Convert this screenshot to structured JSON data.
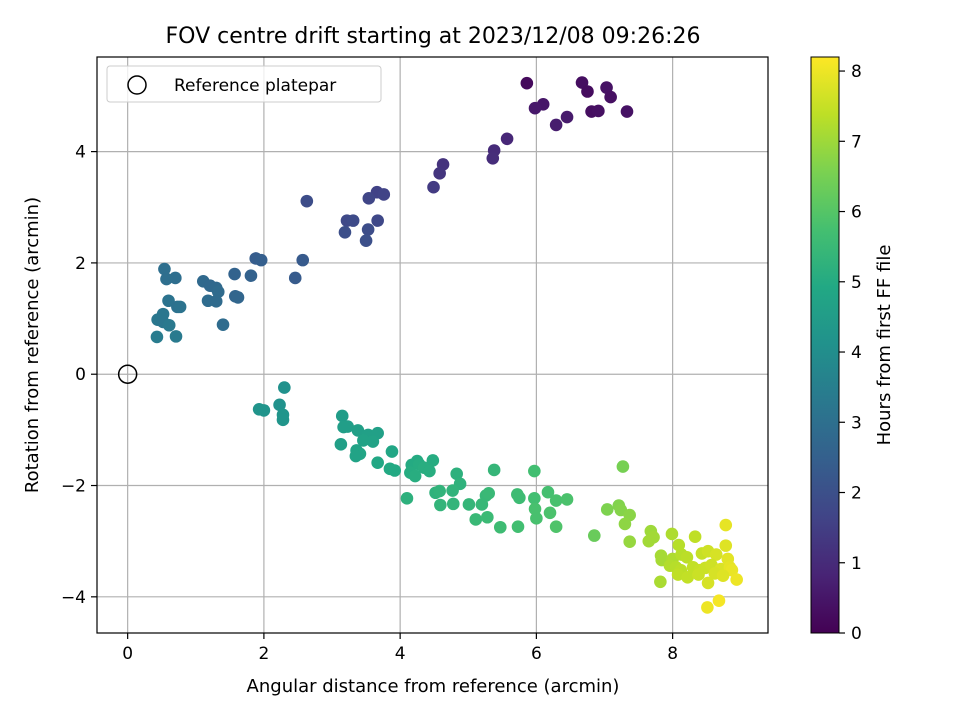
{
  "chart_data": {
    "type": "scatter",
    "title": "FOV centre drift starting at 2023/12/08 09:26:26",
    "xlabel": "Angular distance from reference (arcmin)",
    "ylabel": "Rotation from reference (arcmin)",
    "xlim": [
      -0.45,
      9.4
    ],
    "ylim": [
      -4.65,
      5.7
    ],
    "xticks": [
      0,
      2,
      4,
      6,
      8
    ],
    "yticks": [
      -4,
      -2,
      0,
      2,
      4
    ],
    "xtick_labels": [
      "0",
      "2",
      "4",
      "6",
      "8"
    ],
    "ytick_labels": [
      "−4",
      "−2",
      "0",
      "2",
      "4"
    ],
    "grid": true,
    "legend": {
      "position": "top-left",
      "entries": [
        {
          "label": "Reference platepar",
          "marker": "open-circle"
        }
      ]
    },
    "reference_point": {
      "x": 0,
      "y": 0
    },
    "colorbar": {
      "label": "Hours from first FF file",
      "range": [
        0,
        8.2
      ],
      "ticks": [
        0,
        1,
        2,
        3,
        4,
        5,
        6,
        7,
        8
      ],
      "tick_labels": [
        "0",
        "1",
        "2",
        "3",
        "4",
        "5",
        "6",
        "7",
        "8"
      ],
      "colormap": "viridis"
    },
    "points": [
      {
        "x": 5.86,
        "y": 5.23,
        "c": 0.2
      },
      {
        "x": 6.67,
        "y": 5.24,
        "c": 0.3
      },
      {
        "x": 7.03,
        "y": 5.15,
        "c": 0.4
      },
      {
        "x": 6.75,
        "y": 5.08,
        "c": 0.25
      },
      {
        "x": 7.09,
        "y": 4.98,
        "c": 0.35
      },
      {
        "x": 6.1,
        "y": 4.85,
        "c": 0.5
      },
      {
        "x": 5.98,
        "y": 4.78,
        "c": 0.55
      },
      {
        "x": 6.81,
        "y": 4.72,
        "c": 0.3
      },
      {
        "x": 6.91,
        "y": 4.73,
        "c": 0.35
      },
      {
        "x": 7.33,
        "y": 4.72,
        "c": 0.4
      },
      {
        "x": 6.45,
        "y": 4.62,
        "c": 0.6
      },
      {
        "x": 6.29,
        "y": 4.48,
        "c": 0.65
      },
      {
        "x": 5.57,
        "y": 4.23,
        "c": 0.9
      },
      {
        "x": 5.38,
        "y": 4.02,
        "c": 1.0
      },
      {
        "x": 5.36,
        "y": 3.88,
        "c": 1.05
      },
      {
        "x": 4.63,
        "y": 3.77,
        "c": 1.2
      },
      {
        "x": 4.58,
        "y": 3.61,
        "c": 1.25
      },
      {
        "x": 4.49,
        "y": 3.36,
        "c": 1.4
      },
      {
        "x": 3.66,
        "y": 3.27,
        "c": 1.6
      },
      {
        "x": 3.76,
        "y": 3.23,
        "c": 1.65
      },
      {
        "x": 3.54,
        "y": 3.16,
        "c": 1.7
      },
      {
        "x": 2.63,
        "y": 3.11,
        "c": 1.9
      },
      {
        "x": 3.22,
        "y": 2.76,
        "c": 1.8
      },
      {
        "x": 3.31,
        "y": 2.76,
        "c": 1.85
      },
      {
        "x": 3.67,
        "y": 2.76,
        "c": 1.75
      },
      {
        "x": 3.53,
        "y": 2.6,
        "c": 1.9
      },
      {
        "x": 3.19,
        "y": 2.55,
        "c": 1.95
      },
      {
        "x": 3.5,
        "y": 2.4,
        "c": 2.0
      },
      {
        "x": 1.88,
        "y": 2.08,
        "c": 2.4
      },
      {
        "x": 1.96,
        "y": 2.05,
        "c": 2.45
      },
      {
        "x": 2.57,
        "y": 2.05,
        "c": 2.3
      },
      {
        "x": 0.54,
        "y": 1.89,
        "c": 3.0
      },
      {
        "x": 1.57,
        "y": 1.8,
        "c": 2.6
      },
      {
        "x": 1.81,
        "y": 1.77,
        "c": 2.55
      },
      {
        "x": 2.46,
        "y": 1.73,
        "c": 2.35
      },
      {
        "x": 0.7,
        "y": 1.73,
        "c": 2.95
      },
      {
        "x": 0.57,
        "y": 1.71,
        "c": 3.0
      },
      {
        "x": 1.11,
        "y": 1.67,
        "c": 2.8
      },
      {
        "x": 1.21,
        "y": 1.59,
        "c": 2.75
      },
      {
        "x": 1.3,
        "y": 1.55,
        "c": 2.8
      },
      {
        "x": 1.33,
        "y": 1.48,
        "c": 2.85
      },
      {
        "x": 1.58,
        "y": 1.4,
        "c": 2.65
      },
      {
        "x": 1.62,
        "y": 1.38,
        "c": 2.7
      },
      {
        "x": 0.6,
        "y": 1.32,
        "c": 3.1
      },
      {
        "x": 1.18,
        "y": 1.32,
        "c": 2.9
      },
      {
        "x": 1.3,
        "y": 1.31,
        "c": 2.85
      },
      {
        "x": 0.73,
        "y": 1.21,
        "c": 3.05
      },
      {
        "x": 0.77,
        "y": 1.21,
        "c": 3.1
      },
      {
        "x": 0.52,
        "y": 1.08,
        "c": 3.2
      },
      {
        "x": 0.44,
        "y": 0.98,
        "c": 3.25
      },
      {
        "x": 0.52,
        "y": 0.94,
        "c": 3.2
      },
      {
        "x": 0.61,
        "y": 0.88,
        "c": 3.3
      },
      {
        "x": 1.4,
        "y": 0.89,
        "c": 2.9
      },
      {
        "x": 0.71,
        "y": 0.68,
        "c": 3.35
      },
      {
        "x": 0.43,
        "y": 0.67,
        "c": 3.4
      },
      {
        "x": 2.3,
        "y": -0.24,
        "c": 4.1
      },
      {
        "x": 2.23,
        "y": -0.55,
        "c": 4.15
      },
      {
        "x": 1.93,
        "y": -0.63,
        "c": 4.2
      },
      {
        "x": 2.0,
        "y": -0.65,
        "c": 4.2
      },
      {
        "x": 2.28,
        "y": -0.73,
        "c": 4.25
      },
      {
        "x": 2.28,
        "y": -0.82,
        "c": 4.25
      },
      {
        "x": 3.15,
        "y": -0.75,
        "c": 4.5
      },
      {
        "x": 3.17,
        "y": -0.95,
        "c": 4.55
      },
      {
        "x": 3.23,
        "y": -0.94,
        "c": 4.55
      },
      {
        "x": 3.38,
        "y": -1.01,
        "c": 4.6
      },
      {
        "x": 3.53,
        "y": -1.09,
        "c": 4.65
      },
      {
        "x": 3.67,
        "y": -1.06,
        "c": 4.65
      },
      {
        "x": 3.46,
        "y": -1.19,
        "c": 4.7
      },
      {
        "x": 3.6,
        "y": -1.21,
        "c": 4.7
      },
      {
        "x": 3.13,
        "y": -1.26,
        "c": 4.6
      },
      {
        "x": 3.36,
        "y": -1.37,
        "c": 4.75
      },
      {
        "x": 3.41,
        "y": -1.43,
        "c": 4.8
      },
      {
        "x": 3.35,
        "y": -1.47,
        "c": 4.75
      },
      {
        "x": 3.88,
        "y": -1.39,
        "c": 4.85
      },
      {
        "x": 3.67,
        "y": -1.59,
        "c": 4.9
      },
      {
        "x": 4.25,
        "y": -1.56,
        "c": 5.0
      },
      {
        "x": 4.48,
        "y": -1.55,
        "c": 5.05
      },
      {
        "x": 4.17,
        "y": -1.63,
        "c": 5.0
      },
      {
        "x": 4.28,
        "y": -1.62,
        "c": 5.05
      },
      {
        "x": 4.35,
        "y": -1.68,
        "c": 5.1
      },
      {
        "x": 3.85,
        "y": -1.7,
        "c": 4.95
      },
      {
        "x": 3.92,
        "y": -1.73,
        "c": 4.95
      },
      {
        "x": 4.15,
        "y": -1.77,
        "c": 5.05
      },
      {
        "x": 4.22,
        "y": -1.83,
        "c": 5.1
      },
      {
        "x": 4.43,
        "y": -1.74,
        "c": 5.1
      },
      {
        "x": 4.83,
        "y": -1.79,
        "c": 5.2
      },
      {
        "x": 5.38,
        "y": -1.72,
        "c": 5.4
      },
      {
        "x": 5.97,
        "y": -1.74,
        "c": 5.7
      },
      {
        "x": 7.27,
        "y": -1.66,
        "c": 6.5
      },
      {
        "x": 4.88,
        "y": -1.97,
        "c": 5.25
      },
      {
        "x": 4.52,
        "y": -2.13,
        "c": 5.25
      },
      {
        "x": 4.58,
        "y": -2.1,
        "c": 5.3
      },
      {
        "x": 4.77,
        "y": -2.09,
        "c": 5.3
      },
      {
        "x": 4.1,
        "y": -2.23,
        "c": 5.2
      },
      {
        "x": 4.59,
        "y": -2.35,
        "c": 5.35
      },
      {
        "x": 4.78,
        "y": -2.33,
        "c": 5.35
      },
      {
        "x": 5.01,
        "y": -2.34,
        "c": 5.4
      },
      {
        "x": 5.2,
        "y": -2.34,
        "c": 5.45
      },
      {
        "x": 5.26,
        "y": -2.18,
        "c": 5.45
      },
      {
        "x": 5.3,
        "y": -2.14,
        "c": 5.5
      },
      {
        "x": 5.72,
        "y": -2.16,
        "c": 5.6
      },
      {
        "x": 5.75,
        "y": -2.22,
        "c": 5.6
      },
      {
        "x": 5.97,
        "y": -2.23,
        "c": 5.7
      },
      {
        "x": 6.17,
        "y": -2.12,
        "c": 5.75
      },
      {
        "x": 6.29,
        "y": -2.27,
        "c": 5.8
      },
      {
        "x": 6.45,
        "y": -2.25,
        "c": 5.85
      },
      {
        "x": 5.98,
        "y": -2.42,
        "c": 5.8
      },
      {
        "x": 6.2,
        "y": -2.49,
        "c": 5.85
      },
      {
        "x": 5.11,
        "y": -2.61,
        "c": 5.5
      },
      {
        "x": 5.28,
        "y": -2.57,
        "c": 5.55
      },
      {
        "x": 5.47,
        "y": -2.75,
        "c": 5.6
      },
      {
        "x": 5.73,
        "y": -2.74,
        "c": 5.7
      },
      {
        "x": 6.0,
        "y": -2.59,
        "c": 5.8
      },
      {
        "x": 6.29,
        "y": -2.74,
        "c": 5.9
      },
      {
        "x": 6.85,
        "y": -2.9,
        "c": 6.3
      },
      {
        "x": 7.04,
        "y": -2.43,
        "c": 6.6
      },
      {
        "x": 7.21,
        "y": -2.36,
        "c": 6.65
      },
      {
        "x": 7.24,
        "y": -2.44,
        "c": 6.7
      },
      {
        "x": 7.37,
        "y": -2.53,
        "c": 6.75
      },
      {
        "x": 7.3,
        "y": -2.69,
        "c": 6.8
      },
      {
        "x": 7.37,
        "y": -3.01,
        "c": 6.9
      },
      {
        "x": 7.68,
        "y": -2.82,
        "c": 7.0
      },
      {
        "x": 7.72,
        "y": -2.93,
        "c": 7.05
      },
      {
        "x": 7.65,
        "y": -3.0,
        "c": 7.05
      },
      {
        "x": 7.99,
        "y": -2.87,
        "c": 7.2
      },
      {
        "x": 8.09,
        "y": -3.07,
        "c": 7.3
      },
      {
        "x": 8.33,
        "y": -2.92,
        "c": 7.4
      },
      {
        "x": 8.78,
        "y": -2.71,
        "c": 7.9
      },
      {
        "x": 7.83,
        "y": -3.26,
        "c": 7.1
      },
      {
        "x": 7.84,
        "y": -3.34,
        "c": 7.1
      },
      {
        "x": 8.0,
        "y": -3.32,
        "c": 7.2
      },
      {
        "x": 8.13,
        "y": -3.24,
        "c": 7.3
      },
      {
        "x": 8.21,
        "y": -3.29,
        "c": 7.35
      },
      {
        "x": 8.43,
        "y": -3.22,
        "c": 7.5
      },
      {
        "x": 8.52,
        "y": -3.18,
        "c": 7.6
      },
      {
        "x": 8.64,
        "y": -3.24,
        "c": 7.7
      },
      {
        "x": 8.78,
        "y": -3.08,
        "c": 7.8
      },
      {
        "x": 7.96,
        "y": -3.44,
        "c": 7.25
      },
      {
        "x": 8.05,
        "y": -3.47,
        "c": 7.3
      },
      {
        "x": 8.12,
        "y": -3.52,
        "c": 7.35
      },
      {
        "x": 8.3,
        "y": -3.47,
        "c": 7.45
      },
      {
        "x": 8.4,
        "y": -3.52,
        "c": 7.5
      },
      {
        "x": 8.48,
        "y": -3.48,
        "c": 7.55
      },
      {
        "x": 8.57,
        "y": -3.43,
        "c": 7.6
      },
      {
        "x": 8.71,
        "y": -3.5,
        "c": 7.75
      },
      {
        "x": 8.81,
        "y": -3.32,
        "c": 7.85
      },
      {
        "x": 8.84,
        "y": -3.47,
        "c": 7.9
      },
      {
        "x": 8.87,
        "y": -3.52,
        "c": 7.95
      },
      {
        "x": 8.08,
        "y": -3.6,
        "c": 7.4
      },
      {
        "x": 8.22,
        "y": -3.65,
        "c": 7.45
      },
      {
        "x": 8.38,
        "y": -3.6,
        "c": 7.55
      },
      {
        "x": 8.62,
        "y": -3.58,
        "c": 7.7
      },
      {
        "x": 8.74,
        "y": -3.62,
        "c": 7.8
      },
      {
        "x": 8.94,
        "y": -3.69,
        "c": 8.0
      },
      {
        "x": 7.82,
        "y": -3.73,
        "c": 7.15
      },
      {
        "x": 8.52,
        "y": -3.75,
        "c": 7.7
      },
      {
        "x": 8.68,
        "y": -4.07,
        "c": 8.1
      },
      {
        "x": 8.51,
        "y": -4.19,
        "c": 8.0
      }
    ]
  }
}
